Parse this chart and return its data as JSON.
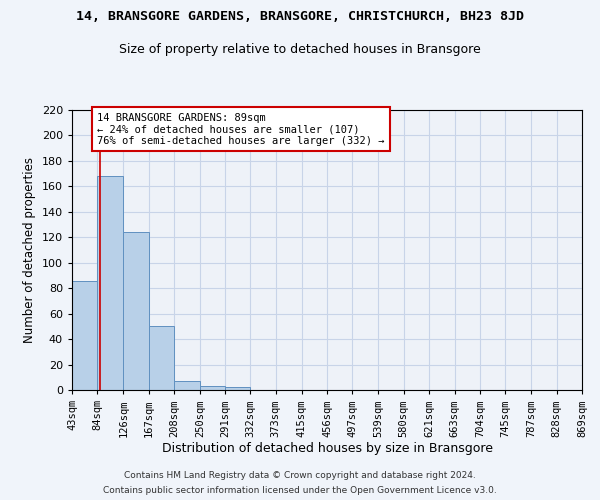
{
  "title": "14, BRANSGORE GARDENS, BRANSGORE, CHRISTCHURCH, BH23 8JD",
  "subtitle": "Size of property relative to detached houses in Bransgore",
  "xlabel": "Distribution of detached houses by size in Bransgore",
  "ylabel": "Number of detached properties",
  "footer_line1": "Contains HM Land Registry data © Crown copyright and database right 2024.",
  "footer_line2": "Contains public sector information licensed under the Open Government Licence v3.0.",
  "bin_edges": [
    43,
    84,
    126,
    167,
    208,
    250,
    291,
    332,
    373,
    415,
    456,
    497,
    539,
    580,
    621,
    663,
    704,
    745,
    787,
    828,
    869
  ],
  "bin_counts": [
    86,
    168,
    124,
    50,
    7,
    3,
    2,
    0,
    0,
    0,
    0,
    0,
    0,
    0,
    0,
    0,
    0,
    0,
    0,
    0
  ],
  "bar_color": "#b8d0e8",
  "bar_edge_color": "#6090c0",
  "grid_color": "#c8d4e8",
  "property_size": 89,
  "property_line_color": "#cc0000",
  "annotation_line1": "14 BRANSGORE GARDENS: 89sqm",
  "annotation_line2": "← 24% of detached houses are smaller (107)",
  "annotation_line3": "76% of semi-detached houses are larger (332) →",
  "annotation_box_color": "#ffffff",
  "annotation_border_color": "#cc0000",
  "ylim": [
    0,
    220
  ],
  "yticks": [
    0,
    20,
    40,
    60,
    80,
    100,
    120,
    140,
    160,
    180,
    200,
    220
  ],
  "bg_color": "#f0f4fa",
  "plot_bg_color": "#eef2f8"
}
